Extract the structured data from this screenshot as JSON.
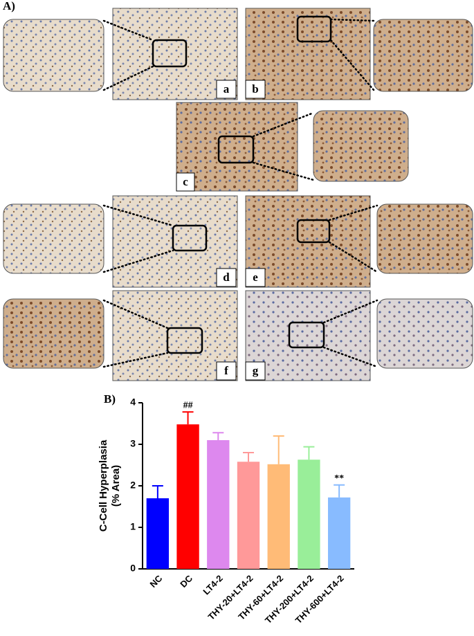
{
  "figure_labels": {
    "panel_a": "A)",
    "panel_b": "B)",
    "letters": [
      "a",
      "b",
      "c",
      "d",
      "e",
      "f",
      "g"
    ]
  },
  "chart_data": {
    "type": "bar",
    "ylabel": [
      "C-Cell Hyperplasia",
      "(% Area)"
    ],
    "categories": [
      "NC",
      "DC",
      "LT4-2",
      "THY-20+LT4-2",
      "THY-60+LT4-2",
      "THY-200+LT4-2",
      "THY-600+LT4-2"
    ],
    "values": [
      1.7,
      3.48,
      3.1,
      2.58,
      2.52,
      2.63,
      1.72
    ],
    "errors": [
      0.3,
      0.3,
      0.18,
      0.22,
      0.68,
      0.31,
      0.3
    ],
    "colors": [
      "#0000ff",
      "#ff0000",
      "#dd88ee",
      "#ff9999",
      "#ffbb77",
      "#99ee99",
      "#88bbff"
    ],
    "significance": [
      null,
      "##",
      null,
      null,
      null,
      null,
      "**"
    ],
    "ylim": [
      0,
      4
    ],
    "yticks": [
      0,
      1,
      2,
      3,
      4
    ]
  }
}
